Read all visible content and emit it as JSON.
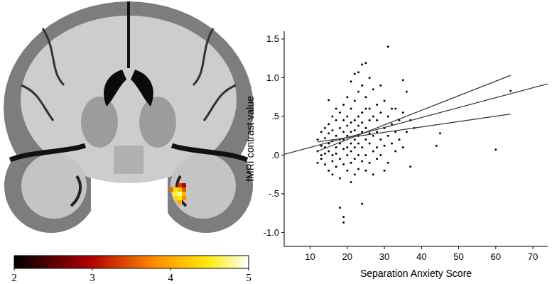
{
  "chart_data": [
    {
      "type": "heatmap",
      "cells": [
        [
          null,
          null,
          3.3,
          3.0,
          null
        ],
        [
          3.6,
          4.4,
          4.2,
          3.5,
          null
        ],
        [
          null,
          4.6,
          4.8,
          4.1,
          null
        ],
        [
          null,
          4.3,
          4.5,
          3.8,
          null
        ],
        [
          null,
          null,
          4.0,
          null,
          null
        ]
      ],
      "colorbar_range": [
        2,
        5
      ],
      "colorbar_ticks": [
        2,
        3,
        4,
        5
      ]
    },
    {
      "type": "scatter",
      "x_label": "Separation Anxiety Score",
      "y_label": "fMRI contrast value",
      "xlim": [
        3,
        74
      ],
      "xticks": [
        10,
        20,
        30,
        40,
        50,
        60,
        70
      ],
      "ylim": [
        -1.18,
        1.6
      ],
      "yticks": [
        {
          "value": -1.0,
          "label": "-1.0"
        },
        {
          "value": -0.5,
          "label": "-.5"
        },
        {
          "value": 0.0,
          "label": ".0"
        },
        {
          "value": 0.5,
          "label": ".5"
        },
        {
          "value": 1.0,
          "label": "1.0"
        },
        1.5
      ],
      "series": [
        {
          "type": "scatter",
          "color": "#000000",
          "marker": "circle",
          "x": [
            12,
            12,
            12,
            13,
            13,
            13,
            13,
            14,
            14,
            14,
            14,
            14,
            15,
            15,
            15,
            15,
            15,
            15,
            16,
            16,
            16,
            16,
            16,
            16,
            17,
            17,
            17,
            17,
            17,
            17,
            18,
            18,
            18,
            18,
            18,
            18,
            18,
            19,
            19,
            19,
            19,
            19,
            19,
            19,
            19,
            20,
            20,
            20,
            20,
            20,
            20,
            20,
            21,
            21,
            21,
            21,
            21,
            21,
            21,
            21,
            22,
            22,
            22,
            22,
            22,
            22,
            22,
            22,
            23,
            23,
            23,
            23,
            23,
            23,
            23,
            23,
            24,
            24,
            24,
            24,
            24,
            24,
            24,
            24,
            25,
            25,
            25,
            25,
            25,
            25,
            25,
            26,
            26,
            26,
            26,
            26,
            26,
            27,
            27,
            27,
            27,
            27,
            28,
            28,
            28,
            28,
            28,
            29,
            29,
            29,
            29,
            30,
            30,
            30,
            30,
            31,
            31,
            31,
            31,
            32,
            32,
            32,
            33,
            33,
            33,
            34,
            34,
            35,
            35,
            35,
            36,
            36,
            37,
            37,
            38,
            44,
            45,
            60,
            64
          ],
          "values": [
            -0.1,
            0.05,
            0.2,
            0.12,
            -0.05,
            0.3,
            0.0,
            0.22,
            0.1,
            -0.12,
            0.35,
            0.02,
            0.71,
            0.15,
            -0.2,
            0.28,
            0.05,
            0.4,
            0.18,
            -0.08,
            0.32,
            0.0,
            0.5,
            -0.25,
            0.1,
            0.25,
            -0.15,
            0.45,
            0.02,
            0.6,
            -0.68,
            0.15,
            0.35,
            -0.05,
            0.2,
            0.55,
            -0.3,
            -0.8,
            -0.87,
            0.08,
            0.3,
            -0.12,
            0.45,
            0.2,
            0.65,
            0.1,
            0.38,
            -0.2,
            0.25,
            0.0,
            0.75,
            0.5,
            -0.35,
            0.15,
            0.42,
            0.05,
            0.3,
            0.95,
            -0.1,
            0.6,
            0.2,
            0.45,
            -0.05,
            0.1,
            0.7,
            0.32,
            -0.25,
            1.05,
            1.07,
            0.25,
            0.5,
            0.0,
            0.15,
            0.82,
            -0.18,
            0.38,
            1.17,
            -0.63,
            0.3,
            0.55,
            0.1,
            0.9,
            -0.08,
            0.42,
            1.19,
            0.2,
            0.6,
            0.0,
            0.35,
            0.75,
            -0.2,
            0.15,
            0.45,
            1.0,
            0.28,
            -0.1,
            0.6,
            0.25,
            0.5,
            0.05,
            0.85,
            -0.25,
            0.3,
            0.65,
            0.1,
            -0.05,
            0.45,
            0.2,
            0.55,
            0.9,
            0.0,
            0.35,
            0.7,
            0.12,
            -0.2,
            1.4,
            0.25,
            0.5,
            -0.1,
            0.4,
            0.15,
            0.6,
            0.6,
            0.3,
            0.05,
            0.45,
            0.2,
            0.97,
            0.55,
            0.1,
            0.82,
            0.3,
            0.45,
            -0.15,
            0.35,
            0.12,
            0.28,
            0.07,
            0.83
          ]
        },
        {
          "type": "line",
          "color": "#333333",
          "line_style": "solid",
          "x": [
            3,
            74
          ],
          "values": [
            0.01,
            0.92
          ]
        },
        {
          "type": "line",
          "color": "#333333",
          "line_style": "solid",
          "x": [
            12,
            64
          ],
          "values": [
            0.05,
            1.03
          ]
        },
        {
          "type": "line",
          "color": "#333333",
          "line_style": "solid",
          "x": [
            12,
            64
          ],
          "values": [
            0.17,
            0.53
          ]
        }
      ]
    }
  ]
}
